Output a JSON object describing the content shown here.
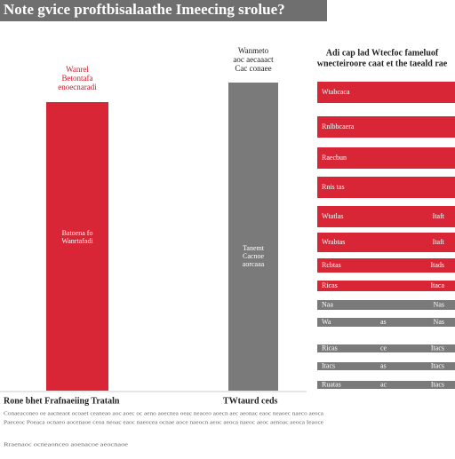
{
  "header": {
    "title": "Note gvice proftbisalaathe Imeecing srolue?"
  },
  "left_panel": {
    "caption": [
      "Wanrel",
      "Betontafa",
      "enoecnaradi"
    ],
    "bar_caption": [
      "Batoena fo",
      "Wanrtafadi"
    ]
  },
  "middle_panel": {
    "caption": [
      "Wanmeto",
      "aoc aecaaact",
      "Cac conaee"
    ],
    "bar_caption": [
      "Tanemt",
      "Cacnoe",
      "aorcaaa"
    ]
  },
  "right_panel": {
    "header": [
      "Adi cap lad Wtecfoc fameluof",
      "wnecteiroore caat et the taeald rae"
    ],
    "rows": [
      {
        "label": "Wtabcaca",
        "color": "#d92636"
      },
      {
        "label": "Rnlbbcaera",
        "color": "#d92636"
      },
      {
        "label": "Raecbun",
        "color": "#d92636"
      },
      {
        "label": "Rnis tas",
        "color": "#d92636"
      },
      {
        "label": "Wtatlas",
        "value": "Itaft",
        "color": "#d92636"
      },
      {
        "label": "Wrabtas",
        "value": "Itaft",
        "color": "#d92636"
      },
      {
        "label": "Rcbtas",
        "value": "Itads",
        "color": "#d92636"
      },
      {
        "label": "Ricas",
        "value": "Itaca",
        "color": "#d92636"
      },
      {
        "label": "Naa",
        "value": "Nas",
        "color": "#7a7a7a"
      },
      {
        "label": "Wa",
        "mid": "as",
        "value": "Nas",
        "color": "#7a7a7a"
      },
      {
        "label": "Ricas",
        "mid": "ce",
        "value": "Itacs",
        "color": "#7a7a7a"
      },
      {
        "label": "Itacs",
        "mid": "as",
        "value": "Itacs",
        "color": "#7a7a7a"
      },
      {
        "label": "Ruatas",
        "mid": "ac",
        "value": "Itacs",
        "color": "#7a7a7a"
      }
    ]
  },
  "footer": {
    "left_title": "Rone bhet Frafnaeiing Trataln",
    "middle_title": "TWtaurd ceds",
    "notes": [
      "Conaeaconeo oe aacneaot ocoaet ceaneao aoc aoec oc aeno aoecnea oeac neaceo aoecn aec aeonac eaoc neaoec naeco aeoca",
      "Paeceoc Poeaca ocnaeo aocenaoe ceoa neoac eaoc naeocea ocnae aoce naeocn aeoc aeoca naeoc aeoc aenoac aeoca Ieaoce",
      "Rraenaoc ocneaonceo aoenacoe aeocnaoe"
    ]
  }
}
